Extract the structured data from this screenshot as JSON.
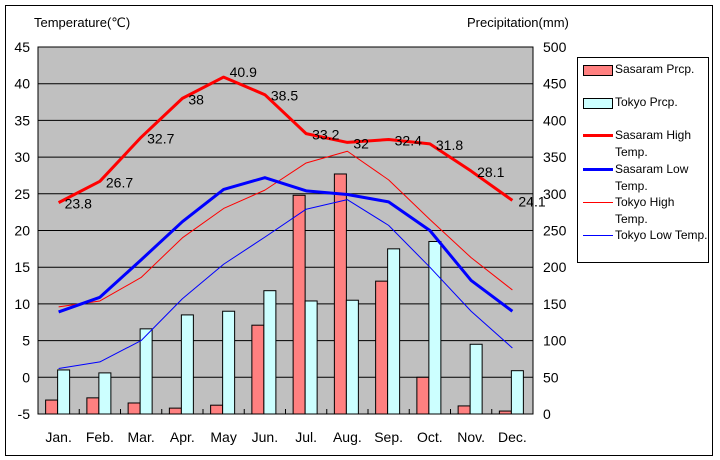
{
  "chart_data": {
    "type": "bar+line",
    "title_left": "Temperature(℃)",
    "title_right": "Precipitation(mm)",
    "categories": [
      "Jan.",
      "Feb.",
      "Mar.",
      "Apr.",
      "May",
      "Jun.",
      "Jul.",
      "Aug.",
      "Sep.",
      "Oct.",
      "Nov.",
      "Dec."
    ],
    "y_left": {
      "label": "Temperature(℃)",
      "min": -5,
      "max": 45,
      "step": 5,
      "ticks": [
        "45",
        "40",
        "35",
        "30",
        "25",
        "20",
        "15",
        "10",
        "5",
        "0",
        "-5"
      ]
    },
    "y_right": {
      "label": "Precipitation(mm)",
      "min": 0,
      "max": 500,
      "step": 50,
      "ticks": [
        "500",
        "450",
        "400",
        "350",
        "300",
        "250",
        "200",
        "150",
        "100",
        "50",
        "0"
      ]
    },
    "grid": true,
    "legend_position": "right",
    "bar_series": [
      {
        "name": "Sasaram Prcp.",
        "color": "#ff8080",
        "axis": "right",
        "values": [
          19,
          22,
          15,
          8,
          12,
          121,
          298,
          327,
          181,
          50,
          11,
          4
        ]
      },
      {
        "name": "Tokyo Prcp.",
        "color": "#ccffff",
        "axis": "right",
        "values": [
          60,
          56,
          116,
          135,
          140,
          168,
          154,
          155,
          225,
          235,
          95,
          59
        ]
      }
    ],
    "line_series": [
      {
        "name": "Sasaram High Temp.",
        "color": "#ff0000",
        "width": "thick",
        "axis": "left",
        "values": [
          23.8,
          26.7,
          32.7,
          38,
          40.9,
          38.5,
          33.2,
          32,
          32.4,
          31.8,
          28.1,
          24.1
        ],
        "labels": [
          "23.8",
          "26.7",
          "32.7",
          "38",
          "40.9",
          "38.5",
          "33.2",
          "32",
          "32.4",
          "31.8",
          "28.1",
          "24.1"
        ]
      },
      {
        "name": "Sasaram Low Temp.",
        "color": "#0000ff",
        "width": "thick",
        "axis": "left",
        "values": [
          8.9,
          10.9,
          16.0,
          21.2,
          25.6,
          27.2,
          25.4,
          24.9,
          23.9,
          20.0,
          13.2,
          9.0
        ]
      },
      {
        "name": "Tokyo High Temp.",
        "color": "#ff0000",
        "width": "thin",
        "axis": "left",
        "values": [
          9.6,
          10.4,
          13.6,
          19.0,
          23.0,
          25.5,
          29.2,
          30.8,
          26.9,
          21.5,
          16.3,
          11.9
        ]
      },
      {
        "name": "Tokyo Low Temp.",
        "color": "#0000ff",
        "width": "thin",
        "axis": "left",
        "values": [
          1.2,
          2.1,
          5.0,
          10.7,
          15.4,
          19.1,
          22.9,
          24.2,
          20.7,
          15.0,
          9.0,
          4.0
        ]
      }
    ],
    "plot_background": "#c0c0c0"
  },
  "legend": {
    "items": [
      {
        "label": "Sasaram Prcp.",
        "kind": "box",
        "color": "#ff8080"
      },
      {
        "label": "Tokyo Prcp.",
        "kind": "box",
        "color": "#ccffff"
      },
      {
        "label": "Sasaram High Temp.",
        "kind": "line",
        "color": "#ff0000",
        "weight": "thick"
      },
      {
        "label": "Sasaram Low Temp.",
        "kind": "line",
        "color": "#0000ff",
        "weight": "thick"
      },
      {
        "label": "Tokyo High Temp.",
        "kind": "line",
        "color": "#ff0000",
        "weight": "thin"
      },
      {
        "label": "Tokyo Low Temp.",
        "kind": "line",
        "color": "#0000ff",
        "weight": "thin"
      }
    ]
  }
}
